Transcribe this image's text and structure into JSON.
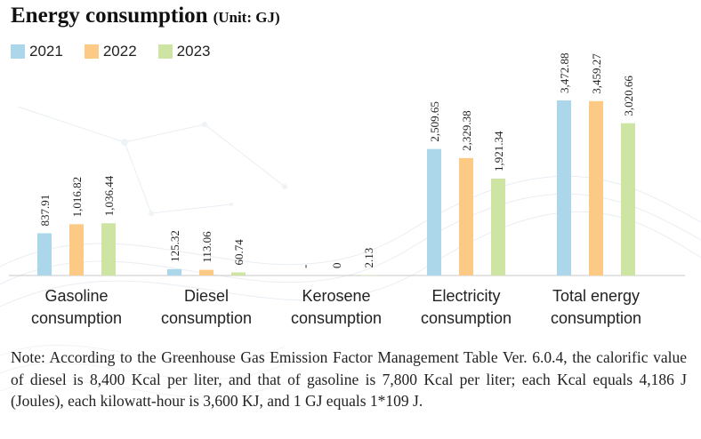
{
  "title": "Energy consumption",
  "unit": "(Unit: GJ)",
  "colors": {
    "2021": "#acd6ea",
    "2022": "#fdca86",
    "2023": "#cee4a2"
  },
  "chart_data": {
    "type": "bar",
    "categories": [
      [
        "Gasoline",
        "consumption"
      ],
      [
        "Diesel",
        "consumption"
      ],
      [
        "Kerosene",
        "consumption"
      ],
      [
        "Electricity",
        "consumption"
      ],
      [
        "Total energy",
        "consumption"
      ]
    ],
    "series": [
      {
        "name": "2021",
        "values": [
          837.91,
          125.32,
          null,
          2509.65,
          3472.88
        ],
        "labels": [
          "837.91",
          "125.32",
          "-",
          "2,509.65",
          "3,472.88"
        ]
      },
      {
        "name": "2022",
        "values": [
          1016.82,
          113.06,
          0,
          2329.38,
          3459.27
        ],
        "labels": [
          "1,016.82",
          "113.06",
          "0",
          "2,329.38",
          "3,459.27"
        ]
      },
      {
        "name": "2023",
        "values": [
          1036.44,
          60.74,
          2.13,
          1921.34,
          3020.66
        ],
        "labels": [
          "1,036.44",
          "60.74",
          "2.13",
          "1,921.34",
          "3,020.66"
        ]
      }
    ],
    "ylim": [
      0,
      3500
    ],
    "grid": false,
    "legend": "top-left"
  },
  "note": "Note: According to the Greenhouse Gas Emission Factor Management Table Ver. 6.0.4, the calorific value of diesel is 8,400 Kcal per liter, and that of gasoline is 7,800 Kcal per liter; each Kcal equals 4,186 J (Joules), each kilowatt-hour is 3,600 KJ, and 1 GJ equals 1*109 J."
}
